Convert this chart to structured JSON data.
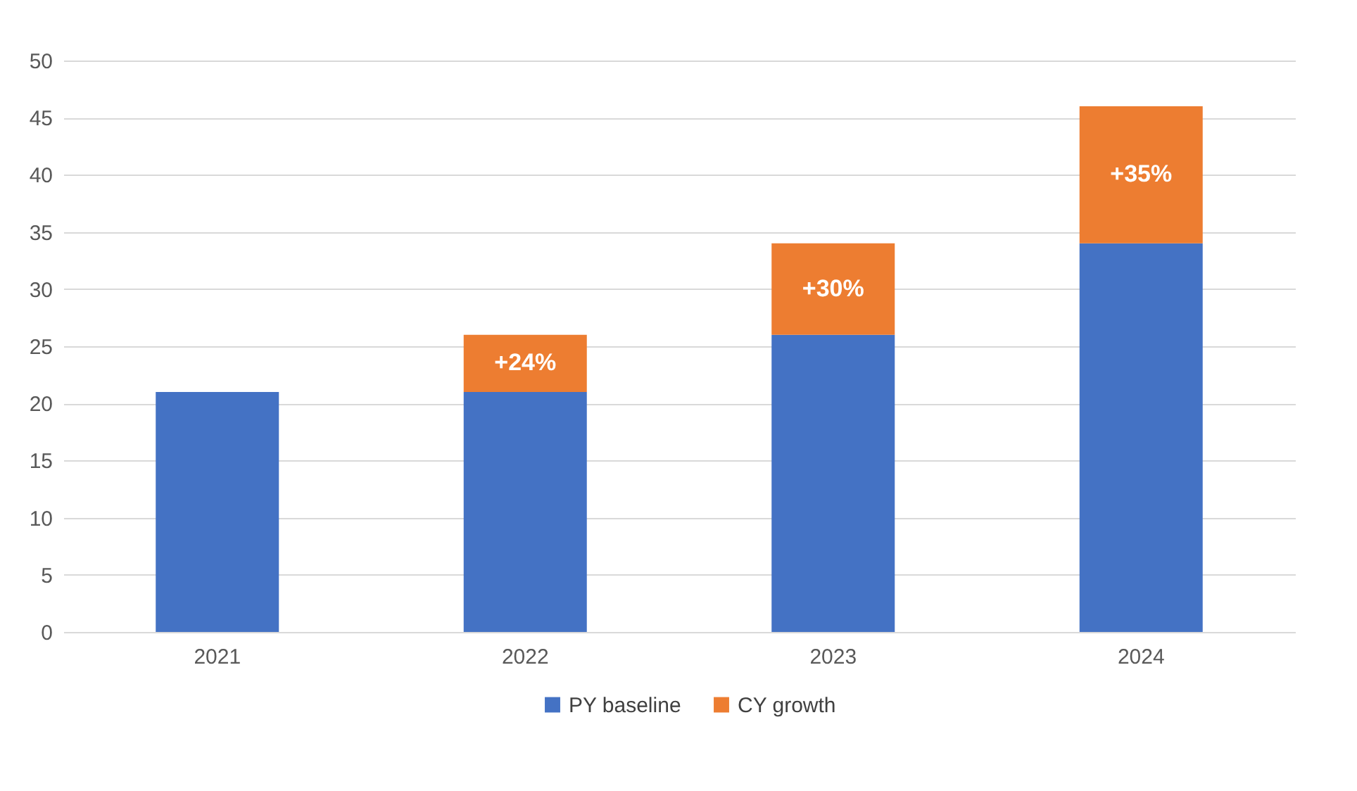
{
  "chart_data": {
    "type": "bar",
    "stacked": true,
    "categories": [
      "2021",
      "2022",
      "2023",
      "2024"
    ],
    "series": [
      {
        "name": "PY baseline",
        "color": "#4472c4",
        "values": [
          21,
          21,
          26,
          34
        ]
      },
      {
        "name": "CY growth",
        "color": "#ed7d31",
        "values": [
          0,
          5,
          8,
          12
        ]
      }
    ],
    "annotations": [
      "+24%",
      "+30%",
      "+35%"
    ],
    "ylim": [
      0,
      50
    ],
    "yticks": [
      0,
      5,
      10,
      15,
      20,
      25,
      30,
      35,
      40,
      45,
      50
    ],
    "grid": "y",
    "legend": "bottom"
  }
}
